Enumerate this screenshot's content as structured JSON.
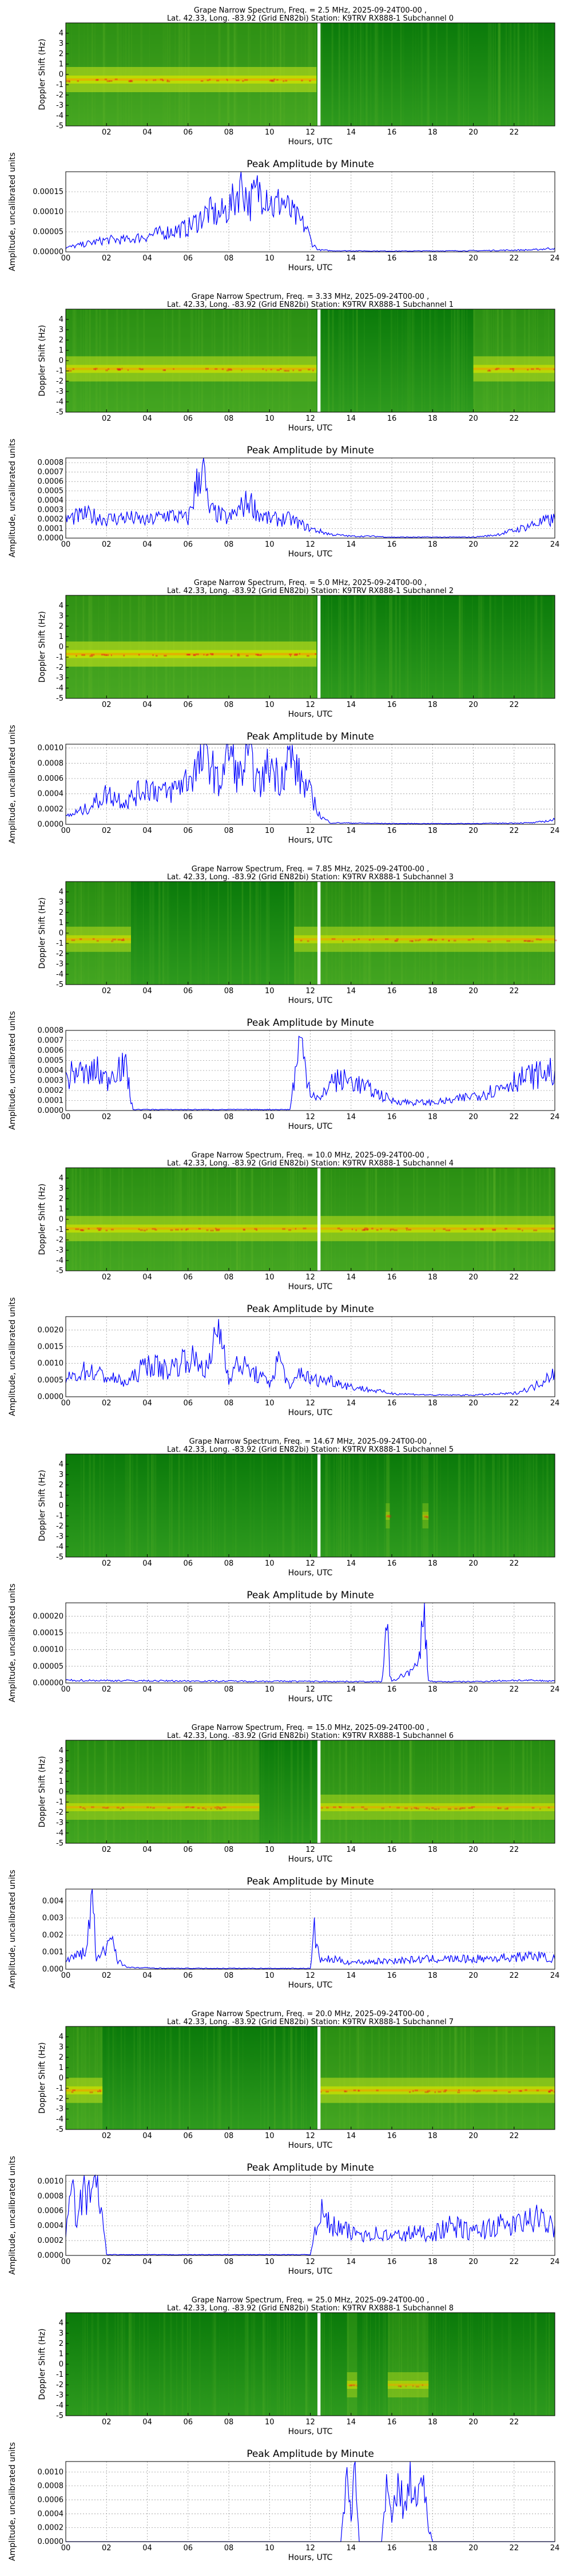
{
  "labels": {
    "doppler_ylabel": "Doppler Shift (Hz)",
    "xlabel": "Hours, UTC",
    "peak_title": "Peak Amplitude by Minute",
    "amp_ylabel": "Amplitude, uncalibrated units",
    "spec_yticks": [
      "4",
      "3",
      "2",
      "1",
      "0",
      "-1",
      "-2",
      "-3",
      "-4",
      "-5"
    ],
    "spec_xticks": [
      "02",
      "04",
      "06",
      "08",
      "10",
      "12",
      "14",
      "16",
      "18",
      "20",
      "22"
    ],
    "amp_xticks": [
      "00",
      "02",
      "04",
      "06",
      "08",
      "10",
      "12",
      "14",
      "16",
      "18",
      "20",
      "22",
      "24"
    ]
  },
  "colors": {
    "trace": "#0000ff",
    "spec_low": "#0b7d0b",
    "spec_mid": "#c8e000",
    "spec_hi": "#e41a1a",
    "gap": "#ffffff"
  },
  "chart_data": [
    {
      "type": "heatmap",
      "title": "Grape Narrow Spectrum, Freq. = 2.5 MHz, 2025-09-24T00-00 ,",
      "subtitle": "Lat.  42.33, Long. -83.92 (Grid EN82bi) Station: K9TRV RX888-1 Subchannel 0",
      "ylabel": "Doppler Shift (Hz)",
      "xlabel": "Hours, UTC",
      "xlim": [
        0,
        24
      ],
      "ylim": [
        -5,
        5
      ],
      "gap_hours": [
        12.35,
        12.5
      ],
      "carrier_hz": -0.5,
      "active_hours": [
        [
          0,
          12.3
        ]
      ],
      "intensity": 0.85
    },
    {
      "type": "line",
      "title": "Peak Amplitude by Minute",
      "ylabel": "Amplitude, uncalibrated units",
      "xlabel": "Hours, UTC",
      "xlim": [
        0,
        24
      ],
      "ylim": [
        0,
        0.0002
      ],
      "yticks": [
        "0.00000",
        "0.00005",
        "0.00010",
        "0.00015"
      ],
      "x": [
        0,
        1,
        2,
        3,
        4,
        5,
        6,
        6.5,
        7,
        7.5,
        8,
        8.3,
        8.6,
        9,
        9.4,
        9.8,
        10.2,
        10.6,
        11,
        11.4,
        11.8,
        12.1,
        12.4,
        13,
        16,
        20,
        23,
        24
      ],
      "y": [
        1e-05,
        2e-05,
        3e-05,
        3e-05,
        4e-05,
        5e-05,
        6e-05,
        8e-05,
        0.0001,
        9e-05,
        0.00011,
        0.00013,
        0.00018,
        0.00012,
        0.00015,
        0.00016,
        0.00011,
        0.00013,
        0.0001,
        8e-05,
        6e-05,
        2e-05,
        5e-06,
        3e-06,
        2e-06,
        3e-06,
        5e-06,
        1e-05
      ]
    },
    {
      "type": "heatmap",
      "title": "Grape Narrow Spectrum, Freq. = 3.33 MHz, 2025-09-24T00-00 ,",
      "subtitle": "Lat.  42.33, Long. -83.92 (Grid EN82bi) Station: K9TRV RX888-1 Subchannel 1",
      "ylabel": "Doppler Shift (Hz)",
      "xlabel": "Hours, UTC",
      "xlim": [
        0,
        24
      ],
      "ylim": [
        -5,
        5
      ],
      "gap_hours": [
        12.35,
        12.5
      ],
      "carrier_hz": -0.8,
      "active_hours": [
        [
          0,
          12.3
        ],
        [
          20,
          24
        ]
      ],
      "intensity": 0.8
    },
    {
      "type": "line",
      "title": "Peak Amplitude by Minute",
      "ylabel": "Amplitude, uncalibrated units",
      "xlabel": "Hours, UTC",
      "xlim": [
        0,
        24
      ],
      "ylim": [
        0,
        0.00085
      ],
      "yticks": [
        "0.0000",
        "0.0001",
        "0.0002",
        "0.0003",
        "0.0004",
        "0.0005",
        "0.0006",
        "0.0007",
        "0.0008"
      ],
      "x": [
        0,
        1,
        2,
        3,
        4,
        5,
        6,
        6.7,
        7,
        7.5,
        8,
        9,
        9.5,
        10,
        11,
        11.5,
        12,
        13,
        14,
        15,
        16,
        18,
        20,
        21,
        22,
        23,
        24
      ],
      "y": [
        0.0002,
        0.00025,
        0.0002,
        0.00022,
        0.00018,
        0.00025,
        0.0002,
        0.0008,
        0.0003,
        0.00025,
        0.0002,
        0.0004,
        0.00025,
        0.0002,
        0.0002,
        0.00015,
        0.0001,
        4e-05,
        2e-05,
        2e-05,
        1e-05,
        1e-05,
        1e-05,
        3e-05,
        8e-05,
        0.00015,
        0.0002
      ]
    },
    {
      "type": "heatmap",
      "title": "Grape Narrow Spectrum, Freq. = 5.0 MHz, 2025-09-24T00-00 ,",
      "subtitle": "Lat.  42.33, Long. -83.92 (Grid EN82bi) Station: K9TRV RX888-1 Subchannel 2",
      "ylabel": "Doppler Shift (Hz)",
      "xlabel": "Hours, UTC",
      "xlim": [
        0,
        24
      ],
      "ylim": [
        -5,
        5
      ],
      "gap_hours": [
        12.35,
        12.5
      ],
      "carrier_hz": -0.7,
      "active_hours": [
        [
          0,
          12.3
        ]
      ],
      "intensity": 0.9
    },
    {
      "type": "line",
      "title": "Peak Amplitude by Minute",
      "ylabel": "Amplitude, uncalibrated units",
      "xlabel": "Hours, UTC",
      "xlim": [
        0,
        24
      ],
      "ylim": [
        0,
        0.00105
      ],
      "yticks": [
        "0.0000",
        "0.0002",
        "0.0004",
        "0.0006",
        "0.0008",
        "0.0010"
      ],
      "x": [
        0,
        1,
        2,
        3,
        4,
        5,
        6,
        7,
        7.5,
        8,
        8.5,
        9,
        9.5,
        10,
        10.5,
        11,
        11.5,
        12,
        12.5,
        13,
        16,
        20,
        23,
        24
      ],
      "y": [
        0.0001,
        0.0002,
        0.0004,
        0.0003,
        0.0005,
        0.0004,
        0.0006,
        0.0009,
        0.0005,
        0.001,
        0.0006,
        0.0009,
        0.0005,
        0.0008,
        0.0006,
        0.0009,
        0.0006,
        0.0004,
        0.0001,
        2e-05,
        1e-05,
        1e-05,
        2e-05,
        6e-05
      ]
    },
    {
      "type": "heatmap",
      "title": "Grape Narrow Spectrum, Freq. = 7.85 MHz, 2025-09-24T00-00 ,",
      "subtitle": "Lat.  42.33, Long. -83.92 (Grid EN82bi) Station: K9TRV RX888-1 Subchannel 3",
      "ylabel": "Doppler Shift (Hz)",
      "xlabel": "Hours, UTC",
      "xlim": [
        0,
        24
      ],
      "ylim": [
        -5,
        5
      ],
      "gap_hours": [
        12.35,
        12.5
      ],
      "carrier_hz": -0.6,
      "active_hours": [
        [
          0,
          3.2
        ],
        [
          11.2,
          24
        ]
      ],
      "intensity": 0.75
    },
    {
      "type": "line",
      "title": "Peak Amplitude by Minute",
      "ylabel": "Amplitude, uncalibrated units",
      "xlabel": "Hours, UTC",
      "xlim": [
        0,
        24
      ],
      "ylim": [
        0,
        0.0008
      ],
      "yticks": [
        "0.0000",
        "0.0001",
        "0.0002",
        "0.0003",
        "0.0004",
        "0.0005",
        "0.0006",
        "0.0007",
        "0.0008"
      ],
      "x": [
        0,
        0.5,
        1,
        1.5,
        2,
        2.5,
        3,
        3.2,
        3.3,
        6,
        9,
        11,
        11.2,
        11.5,
        12,
        12.5,
        13,
        14,
        15,
        16,
        17,
        18,
        19,
        20,
        21,
        22,
        23,
        24
      ],
      "y": [
        0.0003,
        0.0004,
        0.00035,
        0.0004,
        0.0003,
        0.00045,
        0.0004,
        0.0001,
        1e-05,
        1e-05,
        1e-05,
        1e-05,
        0.0003,
        0.0007,
        0.0002,
        0.0001,
        0.0003,
        0.0003,
        0.0002,
        0.0001,
        8e-05,
        8e-05,
        0.0001,
        0.00015,
        0.0002,
        0.0003,
        0.00035,
        0.0004
      ]
    },
    {
      "type": "heatmap",
      "title": "Grape Narrow Spectrum, Freq. = 10.0 MHz, 2025-09-24T00-00 ,",
      "subtitle": "Lat.  42.33, Long. -83.92 (Grid EN82bi) Station: K9TRV RX888-1 Subchannel 4",
      "ylabel": "Doppler Shift (Hz)",
      "xlabel": "Hours, UTC",
      "xlim": [
        0,
        24
      ],
      "ylim": [
        -5,
        5
      ],
      "gap_hours": [
        12.35,
        12.5
      ],
      "carrier_hz": -0.9,
      "active_hours": [
        [
          0,
          24
        ]
      ],
      "intensity": 0.8
    },
    {
      "type": "line",
      "title": "Peak Amplitude by Minute",
      "ylabel": "Amplitude, uncalibrated units",
      "xlabel": "Hours, UTC",
      "xlim": [
        0,
        24
      ],
      "ylim": [
        0,
        0.0024
      ],
      "yticks": [
        "0.0000",
        "0.0005",
        "0.0010",
        "0.0015",
        "0.0020"
      ],
      "x": [
        0,
        1,
        2,
        3,
        4,
        5,
        6,
        7,
        7.5,
        8,
        8.5,
        9,
        10,
        10.5,
        11,
        11.5,
        12,
        13,
        14,
        16,
        18,
        20,
        22,
        23,
        24
      ],
      "y": [
        0.0005,
        0.0008,
        0.0006,
        0.0004,
        0.001,
        0.0008,
        0.0012,
        0.0008,
        0.0022,
        0.0006,
        0.001,
        0.0008,
        0.0004,
        0.0012,
        0.0002,
        0.0008,
        0.0005,
        0.0005,
        0.0003,
        0.0001,
        5e-05,
        5e-05,
        0.0001,
        0.0003,
        0.0008
      ]
    },
    {
      "type": "heatmap",
      "title": "Grape Narrow Spectrum, Freq. = 14.67 MHz, 2025-09-24T00-00 ,",
      "subtitle": "Lat.  42.33, Long. -83.92 (Grid EN82bi) Station: K9TRV RX888-1 Subchannel 5",
      "ylabel": "Doppler Shift (Hz)",
      "xlabel": "Hours, UTC",
      "xlim": [
        0,
        24
      ],
      "ylim": [
        -5,
        5
      ],
      "gap_hours": [
        12.35,
        12.5
      ],
      "carrier_hz": -1.0,
      "active_hours": [
        [
          15.7,
          15.9
        ],
        [
          17.5,
          17.8
        ]
      ],
      "intensity": 0.4
    },
    {
      "type": "line",
      "title": "Peak Amplitude by Minute",
      "ylabel": "Amplitude, uncalibrated units",
      "xlabel": "Hours, UTC",
      "xlim": [
        0,
        24
      ],
      "ylim": [
        0,
        0.00024
      ],
      "yticks": [
        "0.00000",
        "0.00005",
        "0.00010",
        "0.00015",
        "0.00020"
      ],
      "x": [
        0,
        6,
        12,
        15.5,
        15.7,
        15.8,
        15.9,
        16,
        17.3,
        17.5,
        17.6,
        17.7,
        17.8,
        18,
        20,
        22,
        24
      ],
      "y": [
        8e-06,
        6e-06,
        5e-06,
        4e-06,
        0.00013,
        0.00014,
        3e-05,
        4e-06,
        5e-05,
        0.00018,
        0.00022,
        0.0001,
        8e-06,
        4e-06,
        4e-06,
        8e-06,
        6e-06
      ]
    },
    {
      "type": "heatmap",
      "title": "Grape Narrow Spectrum, Freq. = 15.0 MHz, 2025-09-24T00-00 ,",
      "subtitle": "Lat.  42.33, Long. -83.92 (Grid EN82bi) Station: K9TRV RX888-1 Subchannel 6",
      "ylabel": "Doppler Shift (Hz)",
      "xlabel": "Hours, UTC",
      "xlim": [
        0,
        24
      ],
      "ylim": [
        -5,
        5
      ],
      "gap_hours": [
        12.35,
        12.5
      ],
      "carrier_hz": -1.5,
      "active_hours": [
        [
          0,
          9.5
        ],
        [
          12.4,
          24
        ]
      ],
      "intensity": 0.7
    },
    {
      "type": "line",
      "title": "Peak Amplitude by Minute",
      "ylabel": "Amplitude, uncalibrated units",
      "xlabel": "Hours, UTC",
      "xlim": [
        0,
        24
      ],
      "ylim": [
        0,
        0.0047
      ],
      "yticks": [
        "0.000",
        "0.001",
        "0.002",
        "0.003",
        "0.004"
      ],
      "x": [
        0,
        0.5,
        1,
        1.3,
        1.5,
        2,
        2.3,
        2.5,
        3,
        5,
        8,
        10,
        12,
        12.2,
        12.5,
        13,
        14,
        16,
        18,
        20,
        22,
        23,
        24
      ],
      "y": [
        0.0005,
        0.0008,
        0.001,
        0.0044,
        0.0005,
        0.0012,
        0.0022,
        0.0006,
        0.0001,
        5e-05,
        5e-05,
        5e-05,
        5e-05,
        0.0022,
        0.0005,
        0.0006,
        0.0004,
        0.0005,
        0.0006,
        0.0006,
        0.0007,
        0.0008,
        0.0006
      ]
    },
    {
      "type": "heatmap",
      "title": "Grape Narrow Spectrum, Freq. = 20.0 MHz, 2025-09-24T00-00 ,",
      "subtitle": "Lat.  42.33, Long. -83.92 (Grid EN82bi) Station: K9TRV RX888-1 Subchannel 7",
      "ylabel": "Doppler Shift (Hz)",
      "xlabel": "Hours, UTC",
      "xlim": [
        0,
        24
      ],
      "ylim": [
        -5,
        5
      ],
      "gap_hours": [
        12.35,
        12.5
      ],
      "carrier_hz": -1.2,
      "active_hours": [
        [
          0,
          1.8
        ],
        [
          12.5,
          24
        ]
      ],
      "intensity": 0.8
    },
    {
      "type": "line",
      "title": "Peak Amplitude by Minute",
      "ylabel": "Amplitude, uncalibrated units",
      "xlabel": "Hours, UTC",
      "xlim": [
        0,
        24
      ],
      "ylim": [
        0,
        0.00108
      ],
      "yticks": [
        "0.0000",
        "0.0002",
        "0.0004",
        "0.0006",
        "0.0008",
        "0.0010"
      ],
      "x": [
        0,
        0.3,
        0.6,
        0.9,
        1.2,
        1.5,
        1.8,
        2,
        4,
        8,
        12,
        12.4,
        13,
        14,
        15,
        16,
        17,
        18,
        19,
        20,
        21,
        22,
        23,
        24
      ],
      "y": [
        0.0004,
        0.0008,
        0.0005,
        0.0009,
        0.0007,
        0.001,
        0.0005,
        1e-05,
        1e-05,
        1e-05,
        1e-05,
        0.0006,
        0.0004,
        0.0003,
        0.0003,
        0.00025,
        0.0003,
        0.0003,
        0.0004,
        0.0003,
        0.0004,
        0.0004,
        0.0005,
        0.0004
      ]
    },
    {
      "type": "heatmap",
      "title": "Grape Narrow Spectrum, Freq. = 25.0 MHz, 2025-09-24T00-00 ,",
      "subtitle": "Lat.  42.33, Long. -83.92 (Grid EN82bi) Station: K9TRV RX888-1 Subchannel 8",
      "ylabel": "Doppler Shift (Hz)",
      "xlabel": "Hours, UTC",
      "xlim": [
        0,
        24
      ],
      "ylim": [
        -5,
        5
      ],
      "gap_hours": [
        12.35,
        12.5
      ],
      "carrier_hz": -2.0,
      "active_hours": [
        [
          13.8,
          14.3
        ],
        [
          15.8,
          17.8
        ]
      ],
      "intensity": 0.6
    },
    {
      "type": "line",
      "title": "Peak Amplitude by Minute",
      "ylabel": "Amplitude, uncalibrated units",
      "xlabel": "Hours, UTC",
      "xlim": [
        0,
        24
      ],
      "ylim": [
        0,
        0.00115
      ],
      "yticks": [
        "0.0000",
        "0.0002",
        "0.0004",
        "0.0006",
        "0.0008",
        "0.0010"
      ],
      "x": [
        0,
        6,
        12,
        13.5,
        13.8,
        14,
        14.2,
        14.4,
        15.5,
        15.8,
        16,
        16.3,
        16.6,
        16.9,
        17.2,
        17.5,
        17.8,
        18,
        20,
        24
      ],
      "y": [
        0,
        0,
        0,
        0,
        0.0009,
        0.0004,
        0.001,
        0,
        0,
        0.0009,
        0.0002,
        0.001,
        0.0004,
        0.001,
        0.0005,
        0.001,
        0.0002,
        0,
        0,
        0
      ]
    }
  ]
}
